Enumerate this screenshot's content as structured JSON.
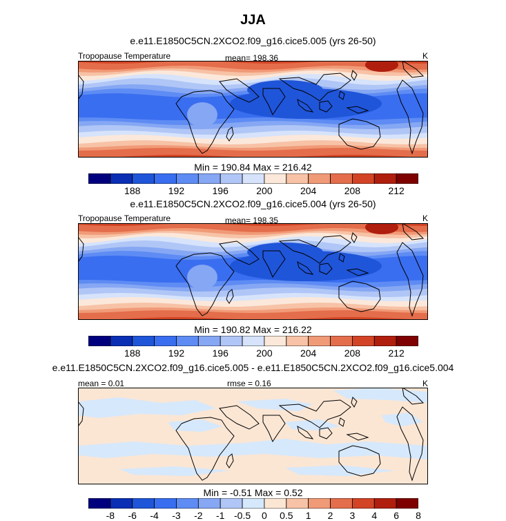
{
  "figure": {
    "title": "JJA",
    "colors": {
      "temp_scale": [
        "#00007f",
        "#0a2fb5",
        "#1f55d9",
        "#3a6ef0",
        "#5e8cf4",
        "#86a7f3",
        "#b0c6f6",
        "#d6e3fb",
        "#fbe8da",
        "#f7c2a6",
        "#f19a77",
        "#e46d4b",
        "#d24425",
        "#b01e0e",
        "#7f0000"
      ],
      "diff_scale": [
        "#00007f",
        "#0a2fb5",
        "#1f55d9",
        "#3a6ef0",
        "#5e8cf4",
        "#86a7f3",
        "#b0c6f6",
        "#d6e8fb",
        "#fbe6d4",
        "#f7c2a6",
        "#f19a77",
        "#e46d4b",
        "#d24425",
        "#b01e0e",
        "#7f0000"
      ],
      "coast": "#000000"
    }
  },
  "panels": [
    {
      "case": "e.e11.E1850C5CN.2XCO2.f09_g16.cice5.005 (yrs 26-50)",
      "left_label": "Tropopause Temperature",
      "center_label": "mean= 198.36",
      "right_label": "K",
      "minmax": "Min = 190.84 Max = 216.42"
    },
    {
      "case": "e.e11.E1850C5CN.2XCO2.f09_g16.cice5.004 (yrs 26-50)",
      "left_label": "Tropopause Temperature",
      "center_label": "mean= 198.35",
      "right_label": "K",
      "minmax": "Min = 190.82 Max = 216.22"
    },
    {
      "case": "e.e11.E1850C5CN.2XCO2.f09_g16.cice5.005 - e.e11.E1850C5CN.2XCO2.f09_g16.cice5.004",
      "left_label": "mean =   0.01",
      "center_label": "rmse =   0.16",
      "right_label": "K",
      "minmax": "Min =  -0.51 Max =   0.52"
    }
  ],
  "chart_data": [
    {
      "type": "heatmap",
      "title": "e.e11.E1850C5CN.2XCO2.f09_g16.cice5.005 (yrs 26-50)",
      "variable": "Tropopause Temperature",
      "units": "K",
      "mean": 198.36,
      "min": 190.84,
      "max": 216.42,
      "colorbar_levels": [
        186,
        188,
        190,
        192,
        194,
        196,
        198,
        200,
        202,
        204,
        206,
        208,
        210,
        212,
        214
      ],
      "colorbar_tick_labels": [
        "188",
        "192",
        "196",
        "200",
        "204",
        "208",
        "212"
      ]
    },
    {
      "type": "heatmap",
      "title": "e.e11.E1850C5CN.2XCO2.f09_g16.cice5.004 (yrs 26-50)",
      "variable": "Tropopause Temperature",
      "units": "K",
      "mean": 198.35,
      "min": 190.82,
      "max": 216.22,
      "colorbar_levels": [
        186,
        188,
        190,
        192,
        194,
        196,
        198,
        200,
        202,
        204,
        206,
        208,
        210,
        212,
        214
      ],
      "colorbar_tick_labels": [
        "188",
        "192",
        "196",
        "200",
        "204",
        "208",
        "212"
      ]
    },
    {
      "type": "heatmap",
      "title": "e.e11.E1850C5CN.2XCO2.f09_g16.cice5.005 - e.e11.E1850C5CN.2XCO2.f09_g16.cice5.004",
      "units": "K",
      "mean": 0.01,
      "rmse": 0.16,
      "min": -0.51,
      "max": 0.52,
      "colorbar_levels": [
        -8,
        -6,
        -4,
        -3,
        -2,
        -1,
        -0.5,
        0,
        0.5,
        1,
        2,
        3,
        4,
        6,
        8
      ],
      "colorbar_tick_labels": [
        "-8",
        "-6",
        "-4",
        "-3",
        "-2",
        "-1",
        "-0.5",
        "0",
        "0.5",
        "1",
        "2",
        "3",
        "4",
        "6",
        "8"
      ]
    }
  ]
}
